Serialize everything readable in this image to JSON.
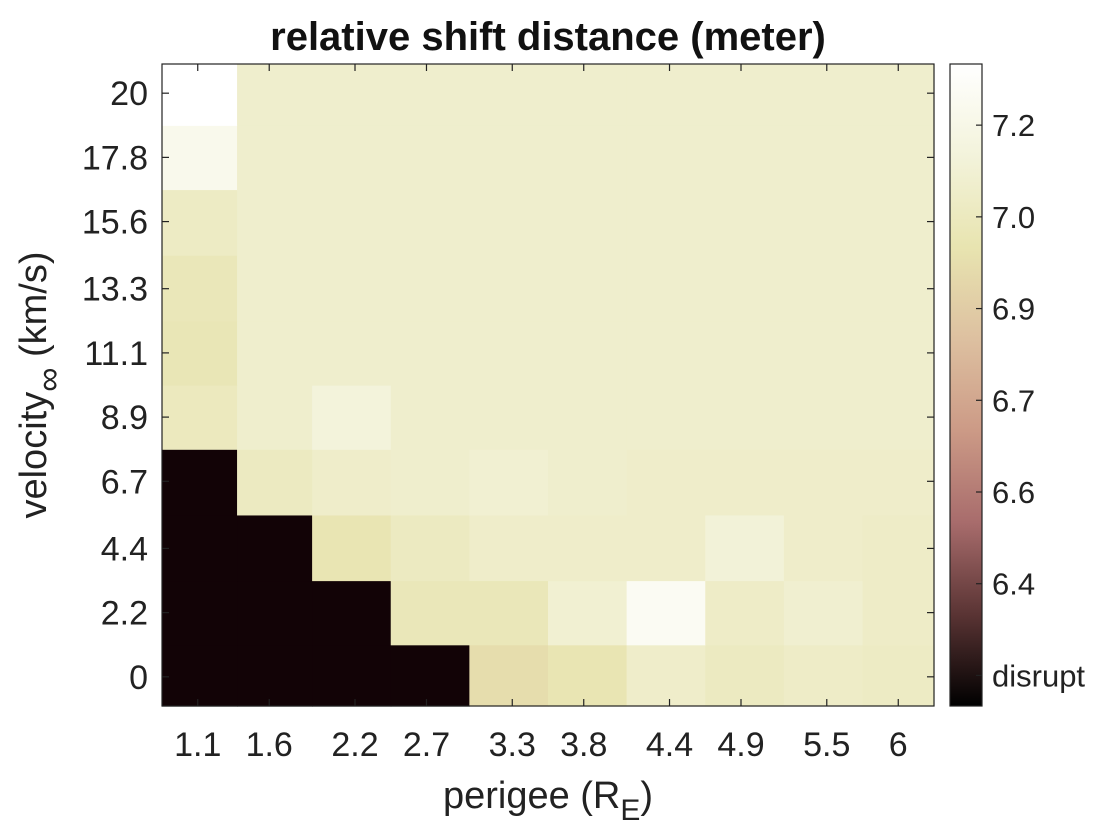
{
  "chart_data": {
    "type": "heatmap",
    "title": "relative shift distance (meter)",
    "xlabel": {
      "base": "perigee (R",
      "sub": "E",
      "tail": ")"
    },
    "ylabel": {
      "base": "velocity",
      "sub": "∞",
      "tail": " (km/s)"
    },
    "x_tick_labels": [
      "1.1",
      "1.6",
      "2.2",
      "2.7",
      "3.3",
      "3.8",
      "4.4",
      "4.9",
      "5.5",
      "6"
    ],
    "x_tick_values": [
      1.1,
      1.6,
      2.2,
      2.7,
      3.3,
      3.8,
      4.4,
      4.9,
      5.5,
      6.0
    ],
    "x_cells": 10,
    "y_tick_labels": [
      "0",
      "2.2",
      "4.4",
      "6.7",
      "8.9",
      "11.1",
      "13.3",
      "15.6",
      "17.8",
      "20"
    ],
    "y_tick_values": [
      0,
      2.2,
      4.4,
      6.7,
      8.9,
      11.1,
      13.3,
      15.6,
      17.8,
      20
    ],
    "y_range": [
      -1.0,
      21.0
    ],
    "y_cell_edges": [
      -1.0,
      1.1,
      3.3,
      5.55,
      7.8,
      10.0,
      12.2,
      14.45,
      16.7,
      18.9,
      21.0
    ],
    "x_range": [
      0.85,
      6.25
    ],
    "x_cell_edges": [
      0.85,
      1.375,
      1.9,
      2.45,
      3.0,
      3.55,
      4.1,
      4.65,
      5.2,
      5.75,
      6.25
    ],
    "disrupt_value": null,
    "values": [
      [
        null,
        null,
        null,
        null,
        6.97,
        7.01,
        7.09,
        7.06,
        7.08,
        7.07
      ],
      [
        null,
        null,
        null,
        7.03,
        7.03,
        7.12,
        7.25,
        7.08,
        7.11,
        7.08
      ],
      [
        null,
        null,
        7.01,
        7.06,
        7.09,
        7.09,
        7.09,
        7.14,
        7.09,
        7.08
      ],
      [
        null,
        7.06,
        7.09,
        7.1,
        7.12,
        7.1,
        7.09,
        7.09,
        7.09,
        7.09
      ],
      [
        7.05,
        7.1,
        7.15,
        7.1,
        7.1,
        7.1,
        7.1,
        7.1,
        7.1,
        7.1
      ],
      [
        7.02,
        7.1,
        7.1,
        7.1,
        7.1,
        7.1,
        7.1,
        7.1,
        7.1,
        7.1
      ],
      [
        7.03,
        7.1,
        7.1,
        7.1,
        7.1,
        7.1,
        7.1,
        7.1,
        7.1,
        7.1
      ],
      [
        7.07,
        7.1,
        7.1,
        7.1,
        7.1,
        7.1,
        7.1,
        7.1,
        7.1,
        7.1
      ],
      [
        7.22,
        7.1,
        7.1,
        7.1,
        7.1,
        7.1,
        7.1,
        7.1,
        7.1,
        7.1
      ],
      [
        7.3,
        7.1,
        7.1,
        7.1,
        7.1,
        7.1,
        7.1,
        7.1,
        7.1,
        7.1
      ]
    ],
    "colorbar": {
      "range": [
        6.25,
        7.3
      ],
      "tick_labels": [
        "disrupt",
        "6.4",
        "6.6",
        "6.7",
        "6.9",
        "7.0",
        "7.2"
      ],
      "tick_values": [
        6.3,
        6.45,
        6.6,
        6.75,
        6.9,
        7.05,
        7.2
      ],
      "colormap": [
        "#000000",
        "#5a3434",
        "#a86c6c",
        "#cc9a86",
        "#ddc0a0",
        "#e8e4b0",
        "#f3f3db",
        "#ffffff"
      ]
    },
    "grid": false,
    "legend": "colorbar-right"
  }
}
